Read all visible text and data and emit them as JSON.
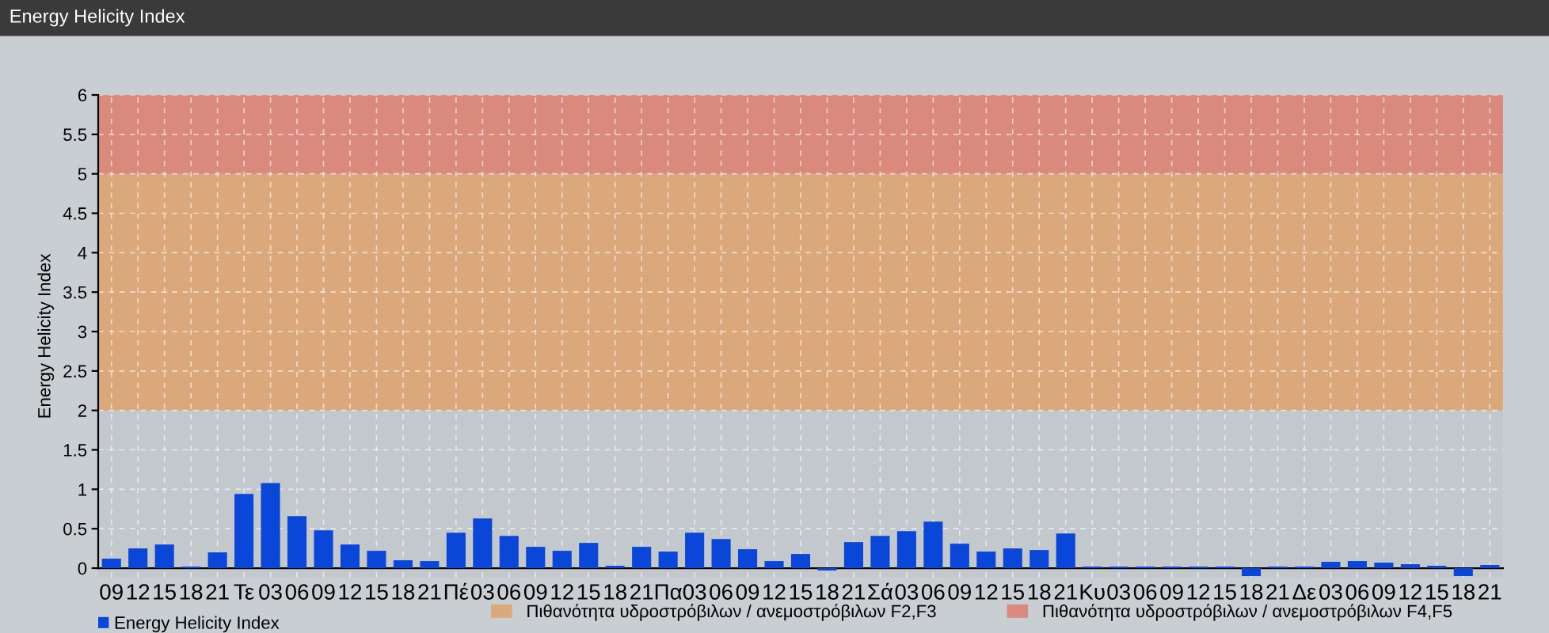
{
  "chart_data": {
    "type": "bar",
    "title": "Energy Helicity Index",
    "ylabel": "Energy Helicity Index",
    "categories": [
      "09",
      "12",
      "15",
      "18",
      "21",
      "Τε",
      "03",
      "06",
      "09",
      "12",
      "15",
      "18",
      "21",
      "Πέ",
      "03",
      "06",
      "09",
      "12",
      "15",
      "18",
      "21",
      "Πα",
      "03",
      "06",
      "09",
      "12",
      "15",
      "18",
      "21",
      "Σά",
      "03",
      "06",
      "09",
      "12",
      "15",
      "18",
      "21",
      "Κυ",
      "03",
      "06",
      "09",
      "12",
      "15",
      "18",
      "21",
      "Δε",
      "03",
      "06",
      "09",
      "12",
      "15",
      "18",
      "21"
    ],
    "series": [
      {
        "name": "Energy Helicity Index",
        "color": "#0a47d8",
        "values": [
          0.12,
          0.25,
          0.3,
          0.02,
          0.2,
          0.94,
          1.08,
          0.66,
          0.48,
          0.3,
          0.22,
          0.1,
          0.09,
          0.45,
          0.63,
          0.41,
          0.27,
          0.22,
          0.32,
          0.03,
          0.27,
          0.21,
          0.45,
          0.37,
          0.24,
          0.09,
          0.18,
          -0.03,
          0.33,
          0.41,
          0.47,
          0.59,
          0.31,
          0.21,
          0.25,
          0.23,
          0.44,
          0.02,
          0.02,
          0.02,
          0.02,
          0.02,
          0.02,
          -0.1,
          0.02,
          0.02,
          0.08,
          0.09,
          0.07,
          0.05,
          0.03,
          -0.1,
          0.04
        ]
      }
    ],
    "ylim": [
      -0.12,
      6
    ],
    "yticks": [
      0,
      0.5,
      1,
      1.5,
      2,
      2.5,
      3,
      3.5,
      4,
      4.5,
      5,
      5.5,
      6
    ],
    "bands": [
      {
        "axis": "y",
        "from": 2,
        "to": 5,
        "label": "Πιθανότητα υδροστρόβιλων / ανεμοστρόβιλων F2,F3",
        "color": "#e0a066"
      },
      {
        "axis": "y",
        "from": 5,
        "to": 6,
        "label": "Πιθανότητα υδροστρόβιλων / ανεμοστρόβιλων F4,F5",
        "color": "#e07a68"
      }
    ],
    "grid": true,
    "legend": "bottom left"
  }
}
